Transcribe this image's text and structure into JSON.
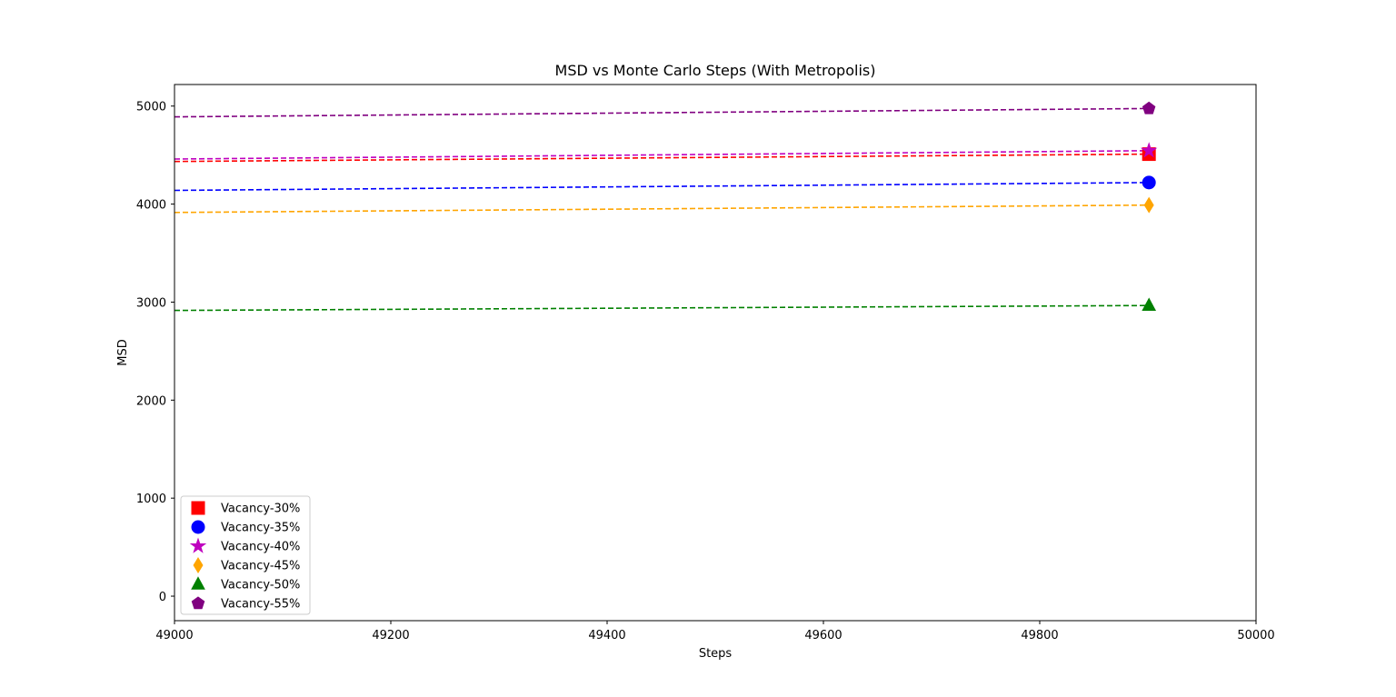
{
  "chart_data": {
    "type": "line",
    "title": "MSD vs Monte Carlo Steps (With Metropolis)",
    "xlabel": "Steps",
    "ylabel": "MSD",
    "xlim": [
      49000,
      50000
    ],
    "ylim": [
      -250,
      5220
    ],
    "xticks": [
      49000,
      49200,
      49400,
      49600,
      49800,
      50000
    ],
    "yticks": [
      0,
      1000,
      2000,
      3000,
      4000,
      5000
    ],
    "grid": false,
    "legend_position": "lower-left",
    "series": [
      {
        "name": "Vacancy-30%",
        "color": "#ff0000",
        "marker": "square",
        "x": [
          49000,
          49901
        ],
        "y": [
          4435,
          4510
        ],
        "marker_x": 49901,
        "marker_y": 4510
      },
      {
        "name": "Vacancy-35%",
        "color": "#0000ff",
        "marker": "circle",
        "x": [
          49000,
          49901
        ],
        "y": [
          4140,
          4220
        ],
        "marker_x": 49901,
        "marker_y": 4220
      },
      {
        "name": "Vacancy-40%",
        "color": "#bf00bf",
        "marker": "star",
        "x": [
          49000,
          49901
        ],
        "y": [
          4460,
          4545
        ],
        "marker_x": 49901,
        "marker_y": 4545
      },
      {
        "name": "Vacancy-45%",
        "color": "#ffa500",
        "marker": "diamond",
        "x": [
          49000,
          49901
        ],
        "y": [
          3915,
          3990
        ],
        "marker_x": 49901,
        "marker_y": 3990
      },
      {
        "name": "Vacancy-50%",
        "color": "#008000",
        "marker": "triangle",
        "x": [
          49000,
          49901
        ],
        "y": [
          2915,
          2965
        ],
        "marker_x": 49901,
        "marker_y": 2965
      },
      {
        "name": "Vacancy-55%",
        "color": "#800080",
        "marker": "pentagon",
        "x": [
          49000,
          49901
        ],
        "y": [
          4890,
          4975
        ],
        "marker_x": 49901,
        "marker_y": 4975
      }
    ]
  }
}
